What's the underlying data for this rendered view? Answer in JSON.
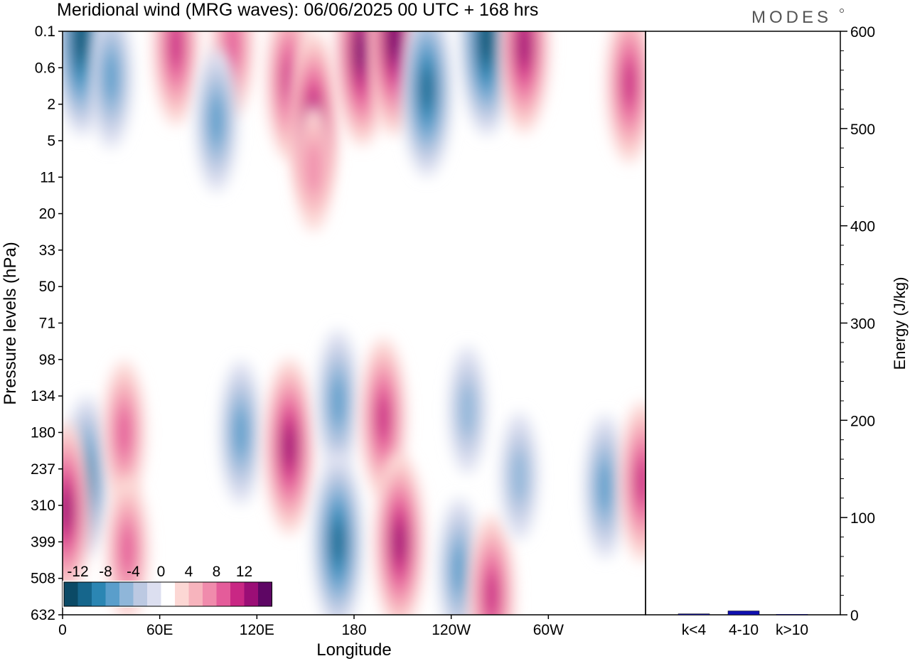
{
  "title": "Meridional wind (MRG waves):  06/06/2025  00 UTC  + 168 hrs",
  "logo": "MODES",
  "chart_data": [
    {
      "type": "heatmap",
      "xlabel": "Longitude",
      "ylabel": "Pressure levels (hPa)",
      "x_ticks": [
        "0",
        "60E",
        "120E",
        "180",
        "120W",
        "60W"
      ],
      "y_ticks": [
        "0.1",
        "0.6",
        "2",
        "5",
        "11",
        "20",
        "33",
        "50",
        "71",
        "98",
        "134",
        "180",
        "237",
        "310",
        "399",
        "508",
        "632"
      ],
      "colorbar": {
        "labels": [
          "-12",
          "-8",
          "-4",
          "0",
          "4",
          "8",
          "12"
        ],
        "levels": [
          -14,
          -12,
          -10,
          -8,
          -6,
          -4,
          -2,
          0,
          2,
          4,
          6,
          8,
          10,
          12,
          14
        ],
        "colors": [
          "#0b4a66",
          "#16668c",
          "#2b86b3",
          "#5a9ecb",
          "#8fb6d9",
          "#bcc9e2",
          "#dcdff0",
          "#ffffff",
          "#fcd7d4",
          "#f7b4bd",
          "#f08bac",
          "#e45c9a",
          "#c92784",
          "#9b0e76",
          "#5e0664"
        ]
      },
      "features": [
        {
          "lon": 12,
          "p": 0.15,
          "value": -14
        },
        {
          "lon": 30,
          "p": 0.8,
          "value": -8
        },
        {
          "lon": 70,
          "p": 0.2,
          "value": 10
        },
        {
          "lon": 105,
          "p": 0.2,
          "value": 8
        },
        {
          "lon": 140,
          "p": 0.9,
          "value": 10
        },
        {
          "lon": 155,
          "p": 3,
          "value": 12
        },
        {
          "lon": 185,
          "p": 0.25,
          "value": 14
        },
        {
          "lon": 205,
          "p": 0.15,
          "value": 14
        },
        {
          "lon": 262,
          "p": 0.15,
          "value": -14
        },
        {
          "lon": 225,
          "p": 1.2,
          "value": -12
        },
        {
          "lon": 285,
          "p": 0.2,
          "value": 12
        },
        {
          "lon": 350,
          "p": 1.0,
          "value": 10
        },
        {
          "lon": 95,
          "p": 3,
          "value": -8
        },
        {
          "lon": 155,
          "p": 9,
          "value": 6
        },
        {
          "lon": 15,
          "p": 250,
          "value": -10
        },
        {
          "lon": 38,
          "p": 180,
          "value": 8
        },
        {
          "lon": 40,
          "p": 420,
          "value": 8
        },
        {
          "lon": 110,
          "p": 180,
          "value": -8
        },
        {
          "lon": 140,
          "p": 200,
          "value": 12
        },
        {
          "lon": 170,
          "p": 140,
          "value": -8
        },
        {
          "lon": 170,
          "p": 400,
          "value": -12
        },
        {
          "lon": 198,
          "p": 160,
          "value": 10
        },
        {
          "lon": 208,
          "p": 400,
          "value": 12
        },
        {
          "lon": 250,
          "p": 150,
          "value": -6
        },
        {
          "lon": 245,
          "p": 480,
          "value": -8
        },
        {
          "lon": 265,
          "p": 560,
          "value": 10
        },
        {
          "lon": 282,
          "p": 250,
          "value": -6
        },
        {
          "lon": 335,
          "p": 270,
          "value": -8
        },
        {
          "lon": 358,
          "p": 260,
          "value": 10
        },
        {
          "lon": 2,
          "p": 320,
          "value": 12
        }
      ]
    },
    {
      "type": "bar",
      "ylabel": "Energy (J/kg)",
      "ylim": [
        0,
        600
      ],
      "y_ticks": [
        "0",
        "100",
        "200",
        "300",
        "400",
        "500",
        "600"
      ],
      "categories": [
        "k<4",
        "4-10",
        "k>10"
      ],
      "values": [
        1,
        4,
        0.5
      ],
      "color": "#1010b0"
    }
  ]
}
